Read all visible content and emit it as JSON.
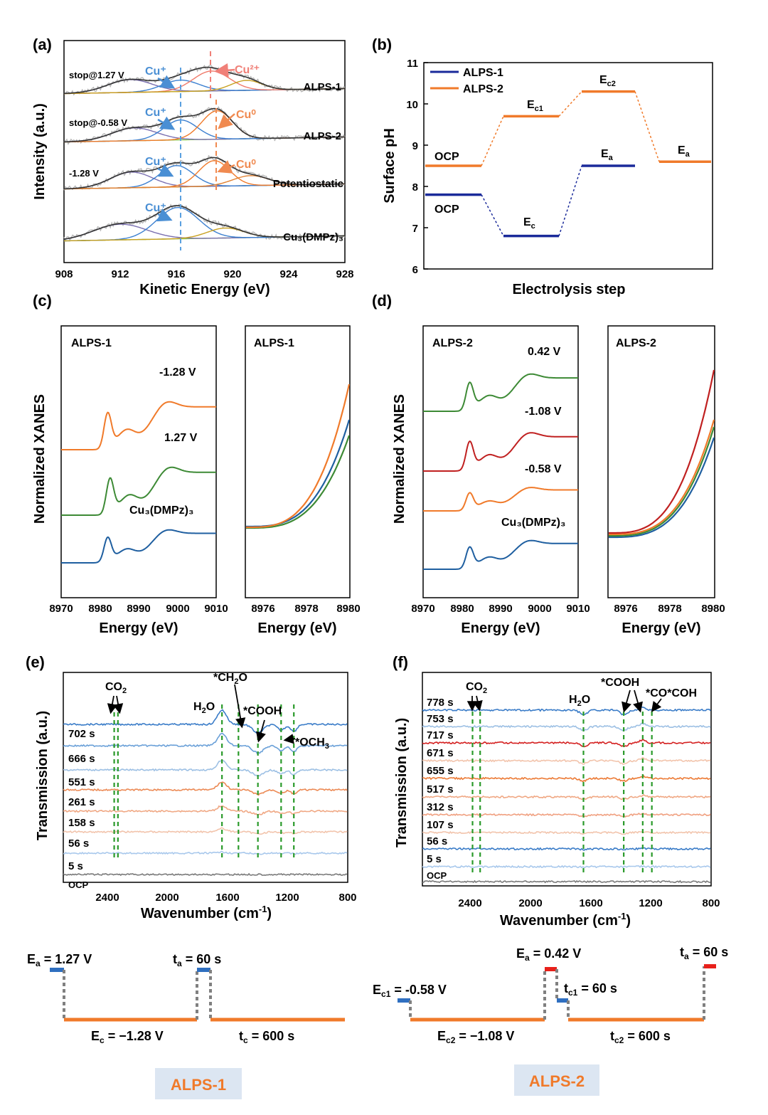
{
  "panels": {
    "a": {
      "label": "(a)",
      "xlabel": "Kinetic Energy (eV)",
      "ylabel": "Intensity (a.u.)",
      "xlim": [
        908,
        928
      ],
      "xticks": [
        "908",
        "912",
        "916",
        "920",
        "924",
        "928"
      ],
      "spectra": [
        {
          "name": "ALPS-1",
          "condition": "stop@1.27 V",
          "peaks": [
            {
              "label": "Cu⁺",
              "energy": 916.3,
              "color": "#4a8fd4"
            },
            {
              "label": "Cu²⁺",
              "energy": 918.5,
              "color": "#f08078"
            }
          ]
        },
        {
          "name": "ALPS-2",
          "condition": "stop@-0.58 V",
          "peaks": [
            {
              "label": "Cu⁺",
              "energy": 916.3,
              "color": "#4a8fd4"
            },
            {
              "label": "Cu⁰",
              "energy": 918.9,
              "color": "#f08a50"
            }
          ]
        },
        {
          "name": "Potentiostatic",
          "condition": "-1.28 V",
          "peaks": [
            {
              "label": "Cu⁺",
              "energy": 916.0,
              "color": "#4a8fd4"
            },
            {
              "label": "Cu⁰",
              "energy": 918.7,
              "color": "#f08a50"
            }
          ]
        },
        {
          "name": "Cu₃(DMPz)₃",
          "condition": "",
          "peaks": [
            {
              "label": "Cu⁺",
              "energy": 916.1,
              "color": "#4a8fd4"
            }
          ]
        }
      ]
    },
    "b": {
      "label": "(b)",
      "xlabel": "Electrolysis step",
      "ylabel": "Surface pH",
      "ylim": [
        6,
        11
      ],
      "yticks": [
        "6",
        "7",
        "8",
        "9",
        "10",
        "11"
      ],
      "legend": [
        {
          "name": "ALPS-1",
          "color": "#1a2a9a"
        },
        {
          "name": "ALPS-2",
          "color": "#f07a2a"
        }
      ],
      "steps": [
        {
          "series": "ALPS-2",
          "label": "OCP",
          "ph": 8.5
        },
        {
          "series": "ALPS-2",
          "label": "Ec1",
          "ph": 9.7
        },
        {
          "series": "ALPS-2",
          "label": "Ec2",
          "ph": 10.3
        },
        {
          "series": "ALPS-2",
          "label": "Ea",
          "ph": 8.6
        },
        {
          "series": "ALPS-1",
          "label": "OCP",
          "ph": 7.8
        },
        {
          "series": "ALPS-1",
          "label": "Ec",
          "ph": 6.8
        },
        {
          "series": "ALPS-1",
          "label": "Ea",
          "ph": 8.5
        }
      ]
    },
    "c": {
      "label": "(c)",
      "ylabel": "Normalized XANES",
      "xlabel": "Energy (eV)",
      "left": {
        "title": "ALPS-1",
        "xticks": [
          "8970",
          "8980",
          "8990",
          "9000",
          "9010"
        ],
        "curves": [
          {
            "name": "-1.28 V",
            "color": "#f07a2a"
          },
          {
            "name": "1.27 V",
            "color": "#3d8a35"
          },
          {
            "name": "Cu₃(DMPz)₃",
            "color": "#1f5fa0"
          }
        ]
      },
      "right": {
        "title": "ALPS-1",
        "xticks": [
          "8976",
          "8978",
          "8980"
        ]
      }
    },
    "d": {
      "label": "(d)",
      "ylabel": "Normalized XANES",
      "xlabel": "Energy (eV)",
      "left": {
        "title": "ALPS-2",
        "xticks": [
          "8970",
          "8980",
          "8990",
          "9000",
          "9010"
        ],
        "curves": [
          {
            "name": "0.42 V",
            "color": "#3d8a35"
          },
          {
            "name": "-1.08 V",
            "color": "#c02020"
          },
          {
            "name": "-0.58 V",
            "color": "#f07a2a"
          },
          {
            "name": "Cu₃(DMPz)₃",
            "color": "#1f5fa0"
          }
        ]
      },
      "right": {
        "title": "ALPS-2",
        "xticks": [
          "8976",
          "8978",
          "8980"
        ]
      }
    },
    "e": {
      "label": "(e)",
      "ylabel": "Transmission (a.u.)",
      "xlabel": "Wavenumber (cm⁻¹)",
      "xticks": [
        "2400",
        "2000",
        "1600",
        "1200",
        "800"
      ],
      "traces": [
        "702 s",
        "666 s",
        "551 s",
        "261 s",
        "158 s",
        "56 s",
        "5 s",
        "OCP"
      ],
      "bands": [
        {
          "label": "CO₂",
          "wn": [
            2360,
            2335
          ]
        },
        {
          "label": "H₂O",
          "wn": [
            1640
          ]
        },
        {
          "label": "*CH₂O",
          "wn": [
            1530
          ]
        },
        {
          "label": "*COOH",
          "wn": [
            1400
          ]
        },
        {
          "label": "*OCH₃",
          "wn": [
            1245
          ]
        },
        {
          "label": "",
          "wn": [
            1160
          ]
        }
      ]
    },
    "f": {
      "label": "(f)",
      "ylabel": "Transmission (a.u.)",
      "xlabel": "Wavenumber (cm⁻¹)",
      "xticks": [
        "2400",
        "2000",
        "1600",
        "1200",
        "800"
      ],
      "traces": [
        "778 s",
        "753 s",
        "717 s",
        "671 s",
        "655 s",
        "517 s",
        "312 s",
        "107 s",
        "56 s",
        "5 s",
        "OCP"
      ],
      "bands": [
        {
          "label": "CO₂",
          "wn": [
            2370,
            2320
          ]
        },
        {
          "label": "H₂O",
          "wn": [
            1640
          ]
        },
        {
          "label": "*COOH",
          "wn": [
            1375,
            1250
          ]
        },
        {
          "label": "*CO*COH",
          "wn": [
            1190
          ]
        }
      ]
    }
  },
  "protocols": {
    "alps1": {
      "name": "ALPS-1",
      "ea": "1.27 V",
      "ta": "60 s",
      "ec": "−1.28 V",
      "tc": "600 s"
    },
    "alps2": {
      "name": "ALPS-2",
      "ec1": "-0.58 V",
      "ea": "0.42 V",
      "tc1": "60 s",
      "ta": "60 s",
      "ec2": "−1.08 V",
      "tc2": "600 s"
    }
  },
  "colors": {
    "blue": "#2f6fc0",
    "orange": "#f07a2a",
    "red": "#e8201a",
    "badge_bg": "#dce6f2",
    "badge_text": "#f07a2a"
  }
}
